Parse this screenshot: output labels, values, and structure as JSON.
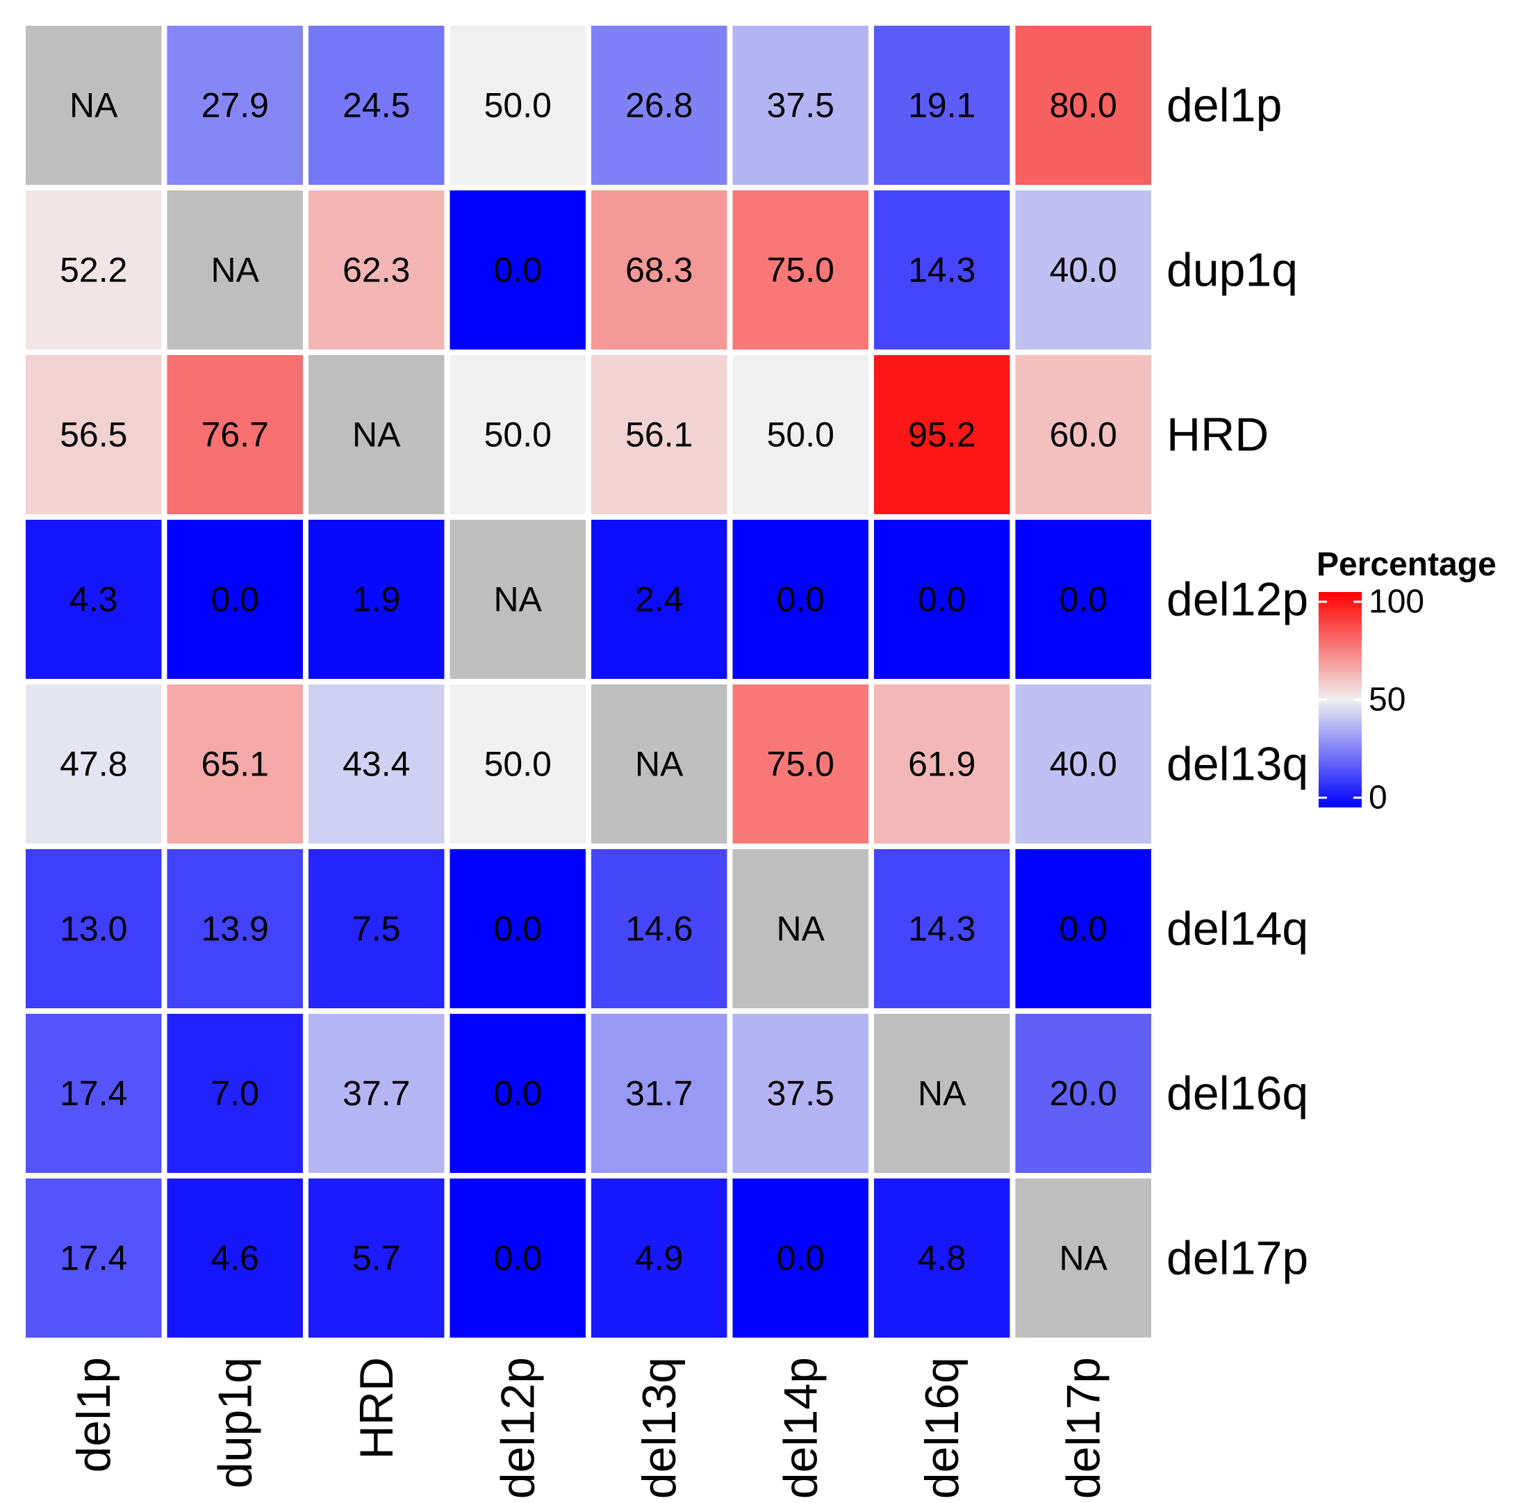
{
  "chart_data": {
    "type": "heatmap",
    "rows": [
      "del1p",
      "dup1q",
      "HRD",
      "del12p",
      "del13q",
      "del14q",
      "del16q",
      "del17p"
    ],
    "columns": [
      "del1p",
      "dup1q",
      "HRD",
      "del12p",
      "del13q",
      "del14p",
      "del16q",
      "del17p"
    ],
    "values": [
      [
        null,
        27.9,
        24.5,
        50.0,
        26.8,
        37.5,
        19.1,
        80.0
      ],
      [
        52.2,
        null,
        62.3,
        0.0,
        68.3,
        75.0,
        14.3,
        40.0
      ],
      [
        56.5,
        76.7,
        null,
        50.0,
        56.1,
        50.0,
        95.2,
        60.0
      ],
      [
        4.3,
        0.0,
        1.9,
        null,
        2.4,
        0.0,
        0.0,
        0.0
      ],
      [
        47.8,
        65.1,
        43.4,
        50.0,
        null,
        75.0,
        61.9,
        40.0
      ],
      [
        13.0,
        13.9,
        7.5,
        0.0,
        14.6,
        null,
        14.3,
        0.0
      ],
      [
        17.4,
        7.0,
        37.7,
        0.0,
        31.7,
        37.5,
        null,
        20.0
      ],
      [
        17.4,
        4.6,
        5.7,
        0.0,
        4.9,
        0.0,
        4.8,
        null
      ]
    ],
    "labels": [
      [
        "NA",
        "27.9",
        "24.5",
        "50.0",
        "26.8",
        "37.5",
        "19.1",
        "80.0"
      ],
      [
        "52.2",
        "NA",
        "62.3",
        "0.0",
        "68.3",
        "75.0",
        "14.3",
        "40.0"
      ],
      [
        "56.5",
        "76.7",
        "NA",
        "50.0",
        "56.1",
        "50.0",
        "95.2",
        "60.0"
      ],
      [
        "4.3",
        "0.0",
        "1.9",
        "NA",
        "2.4",
        "0.0",
        "0.0",
        "0.0"
      ],
      [
        "47.8",
        "65.1",
        "43.4",
        "50.0",
        "NA",
        "75.0",
        "61.9",
        "40.0"
      ],
      [
        "13.0",
        "13.9",
        "7.5",
        "0.0",
        "14.6",
        "NA",
        "14.3",
        "0.0"
      ],
      [
        "17.4",
        "7.0",
        "37.7",
        "0.0",
        "31.7",
        "37.5",
        "NA",
        "20.0"
      ],
      [
        "17.4",
        "4.6",
        "5.7",
        "0.0",
        "4.9",
        "0.0",
        "4.8",
        "NA"
      ]
    ],
    "legend": {
      "title": "Percentage",
      "min": 0,
      "mid": 50,
      "max": 100,
      "ticks": [
        {
          "value": 100,
          "label": "100"
        },
        {
          "value": 50,
          "label": "50"
        },
        {
          "value": 0,
          "label": "0"
        }
      ],
      "placement": "right"
    },
    "colors": {
      "low": "#0000FF",
      "mid": "#F0F0F0",
      "high": "#FF0000",
      "na": "#BEBEBE"
    }
  }
}
